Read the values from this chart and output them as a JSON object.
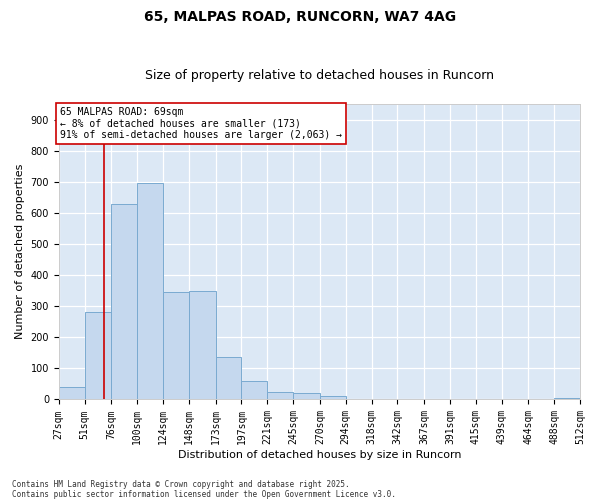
{
  "title1": "65, MALPAS ROAD, RUNCORN, WA7 4AG",
  "title2": "Size of property relative to detached houses in Runcorn",
  "xlabel": "Distribution of detached houses by size in Runcorn",
  "ylabel": "Number of detached properties",
  "bar_color": "#c5d8ee",
  "bar_edge_color": "#7aaad0",
  "background_color": "#dce8f5",
  "annotation_text": "65 MALPAS ROAD: 69sqm\n← 8% of detached houses are smaller (173)\n91% of semi-detached houses are larger (2,063) →",
  "vline_x": 69,
  "vline_color": "#cc0000",
  "bins": [
    27,
    51,
    76,
    100,
    124,
    148,
    173,
    197,
    221,
    245,
    270,
    294,
    318,
    342,
    367,
    391,
    415,
    439,
    464,
    488,
    512
  ],
  "counts": [
    40,
    280,
    630,
    695,
    345,
    350,
    135,
    60,
    25,
    20,
    10,
    0,
    0,
    0,
    0,
    0,
    0,
    0,
    0,
    5,
    0
  ],
  "ylim": [
    0,
    950
  ],
  "yticks": [
    0,
    100,
    200,
    300,
    400,
    500,
    600,
    700,
    800,
    900
  ],
  "footnote": "Contains HM Land Registry data © Crown copyright and database right 2025.\nContains public sector information licensed under the Open Government Licence v3.0.",
  "title1_fontsize": 10,
  "title2_fontsize": 9,
  "axis_label_fontsize": 8,
  "tick_fontsize": 7,
  "annotation_fontsize": 7,
  "footnote_fontsize": 5.5
}
